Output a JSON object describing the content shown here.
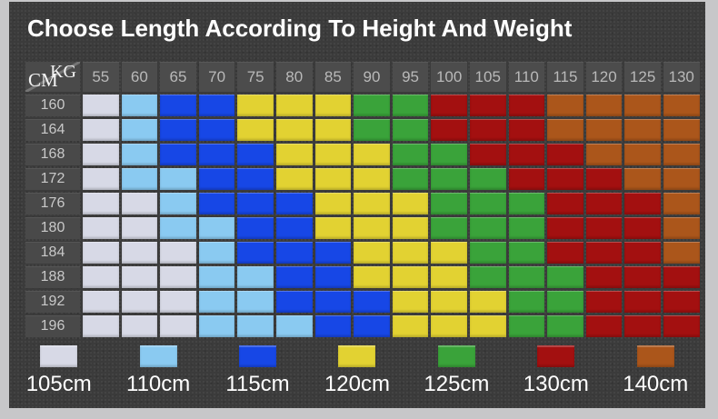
{
  "title": "Choose Length According To Height And Weight",
  "corner": {
    "top_right": "KG",
    "bottom_left": "CM"
  },
  "colors": {
    "frame": "#c7c7c9",
    "panel_bg": "#3b3b3b",
    "header_cell_bg": "#4c4c4c",
    "row_cell_bg": "#494949",
    "header_text": "#b9b9b9",
    "row_text": "#c9c9c9",
    "title_text": "#ffffff"
  },
  "chart_data": {
    "type": "heatmap",
    "title": "Choose Length According To Height And Weight",
    "x_axis_label": "KG",
    "y_axis_label": "CM",
    "x_ticks": [
      "55",
      "60",
      "65",
      "70",
      "75",
      "80",
      "85",
      "90",
      "95",
      "100",
      "105",
      "110",
      "115",
      "120",
      "125",
      "130"
    ],
    "y_ticks": [
      "160",
      "164",
      "168",
      "172",
      "176",
      "180",
      "184",
      "188",
      "192",
      "196"
    ],
    "legend": [
      {
        "label": "105cm",
        "value": 105,
        "color": "#d7d9e6"
      },
      {
        "label": "110cm",
        "value": 110,
        "color": "#8acaf1"
      },
      {
        "label": "115cm",
        "value": 115,
        "color": "#1747e6"
      },
      {
        "label": "120cm",
        "value": 120,
        "color": "#e2d232"
      },
      {
        "label": "125cm",
        "value": 125,
        "color": "#3aa33a"
      },
      {
        "label": "130cm",
        "value": 130,
        "color": "#a31010"
      },
      {
        "label": "140cm",
        "value": 140,
        "color": "#ab561b"
      }
    ],
    "legend_position": "bottom",
    "matrix": [
      [
        105,
        110,
        115,
        115,
        120,
        120,
        120,
        125,
        125,
        130,
        130,
        130,
        140,
        140,
        140,
        140
      ],
      [
        105,
        110,
        115,
        115,
        120,
        120,
        120,
        125,
        125,
        130,
        130,
        130,
        140,
        140,
        140,
        140
      ],
      [
        105,
        110,
        115,
        115,
        115,
        120,
        120,
        120,
        125,
        125,
        130,
        130,
        130,
        140,
        140,
        140
      ],
      [
        105,
        110,
        110,
        115,
        115,
        120,
        120,
        120,
        125,
        125,
        125,
        130,
        130,
        130,
        140,
        140
      ],
      [
        105,
        105,
        110,
        115,
        115,
        115,
        120,
        120,
        120,
        125,
        125,
        125,
        130,
        130,
        130,
        140
      ],
      [
        105,
        105,
        110,
        110,
        115,
        115,
        120,
        120,
        120,
        125,
        125,
        125,
        130,
        130,
        130,
        140
      ],
      [
        105,
        105,
        105,
        110,
        115,
        115,
        115,
        120,
        120,
        120,
        125,
        125,
        130,
        130,
        130,
        140
      ],
      [
        105,
        105,
        105,
        110,
        110,
        115,
        115,
        120,
        120,
        120,
        125,
        125,
        125,
        130,
        130,
        130
      ],
      [
        105,
        105,
        105,
        110,
        110,
        115,
        115,
        115,
        120,
        120,
        120,
        125,
        125,
        130,
        130,
        130
      ],
      [
        105,
        105,
        105,
        110,
        110,
        110,
        115,
        115,
        120,
        120,
        120,
        125,
        125,
        130,
        130,
        130
      ]
    ]
  }
}
